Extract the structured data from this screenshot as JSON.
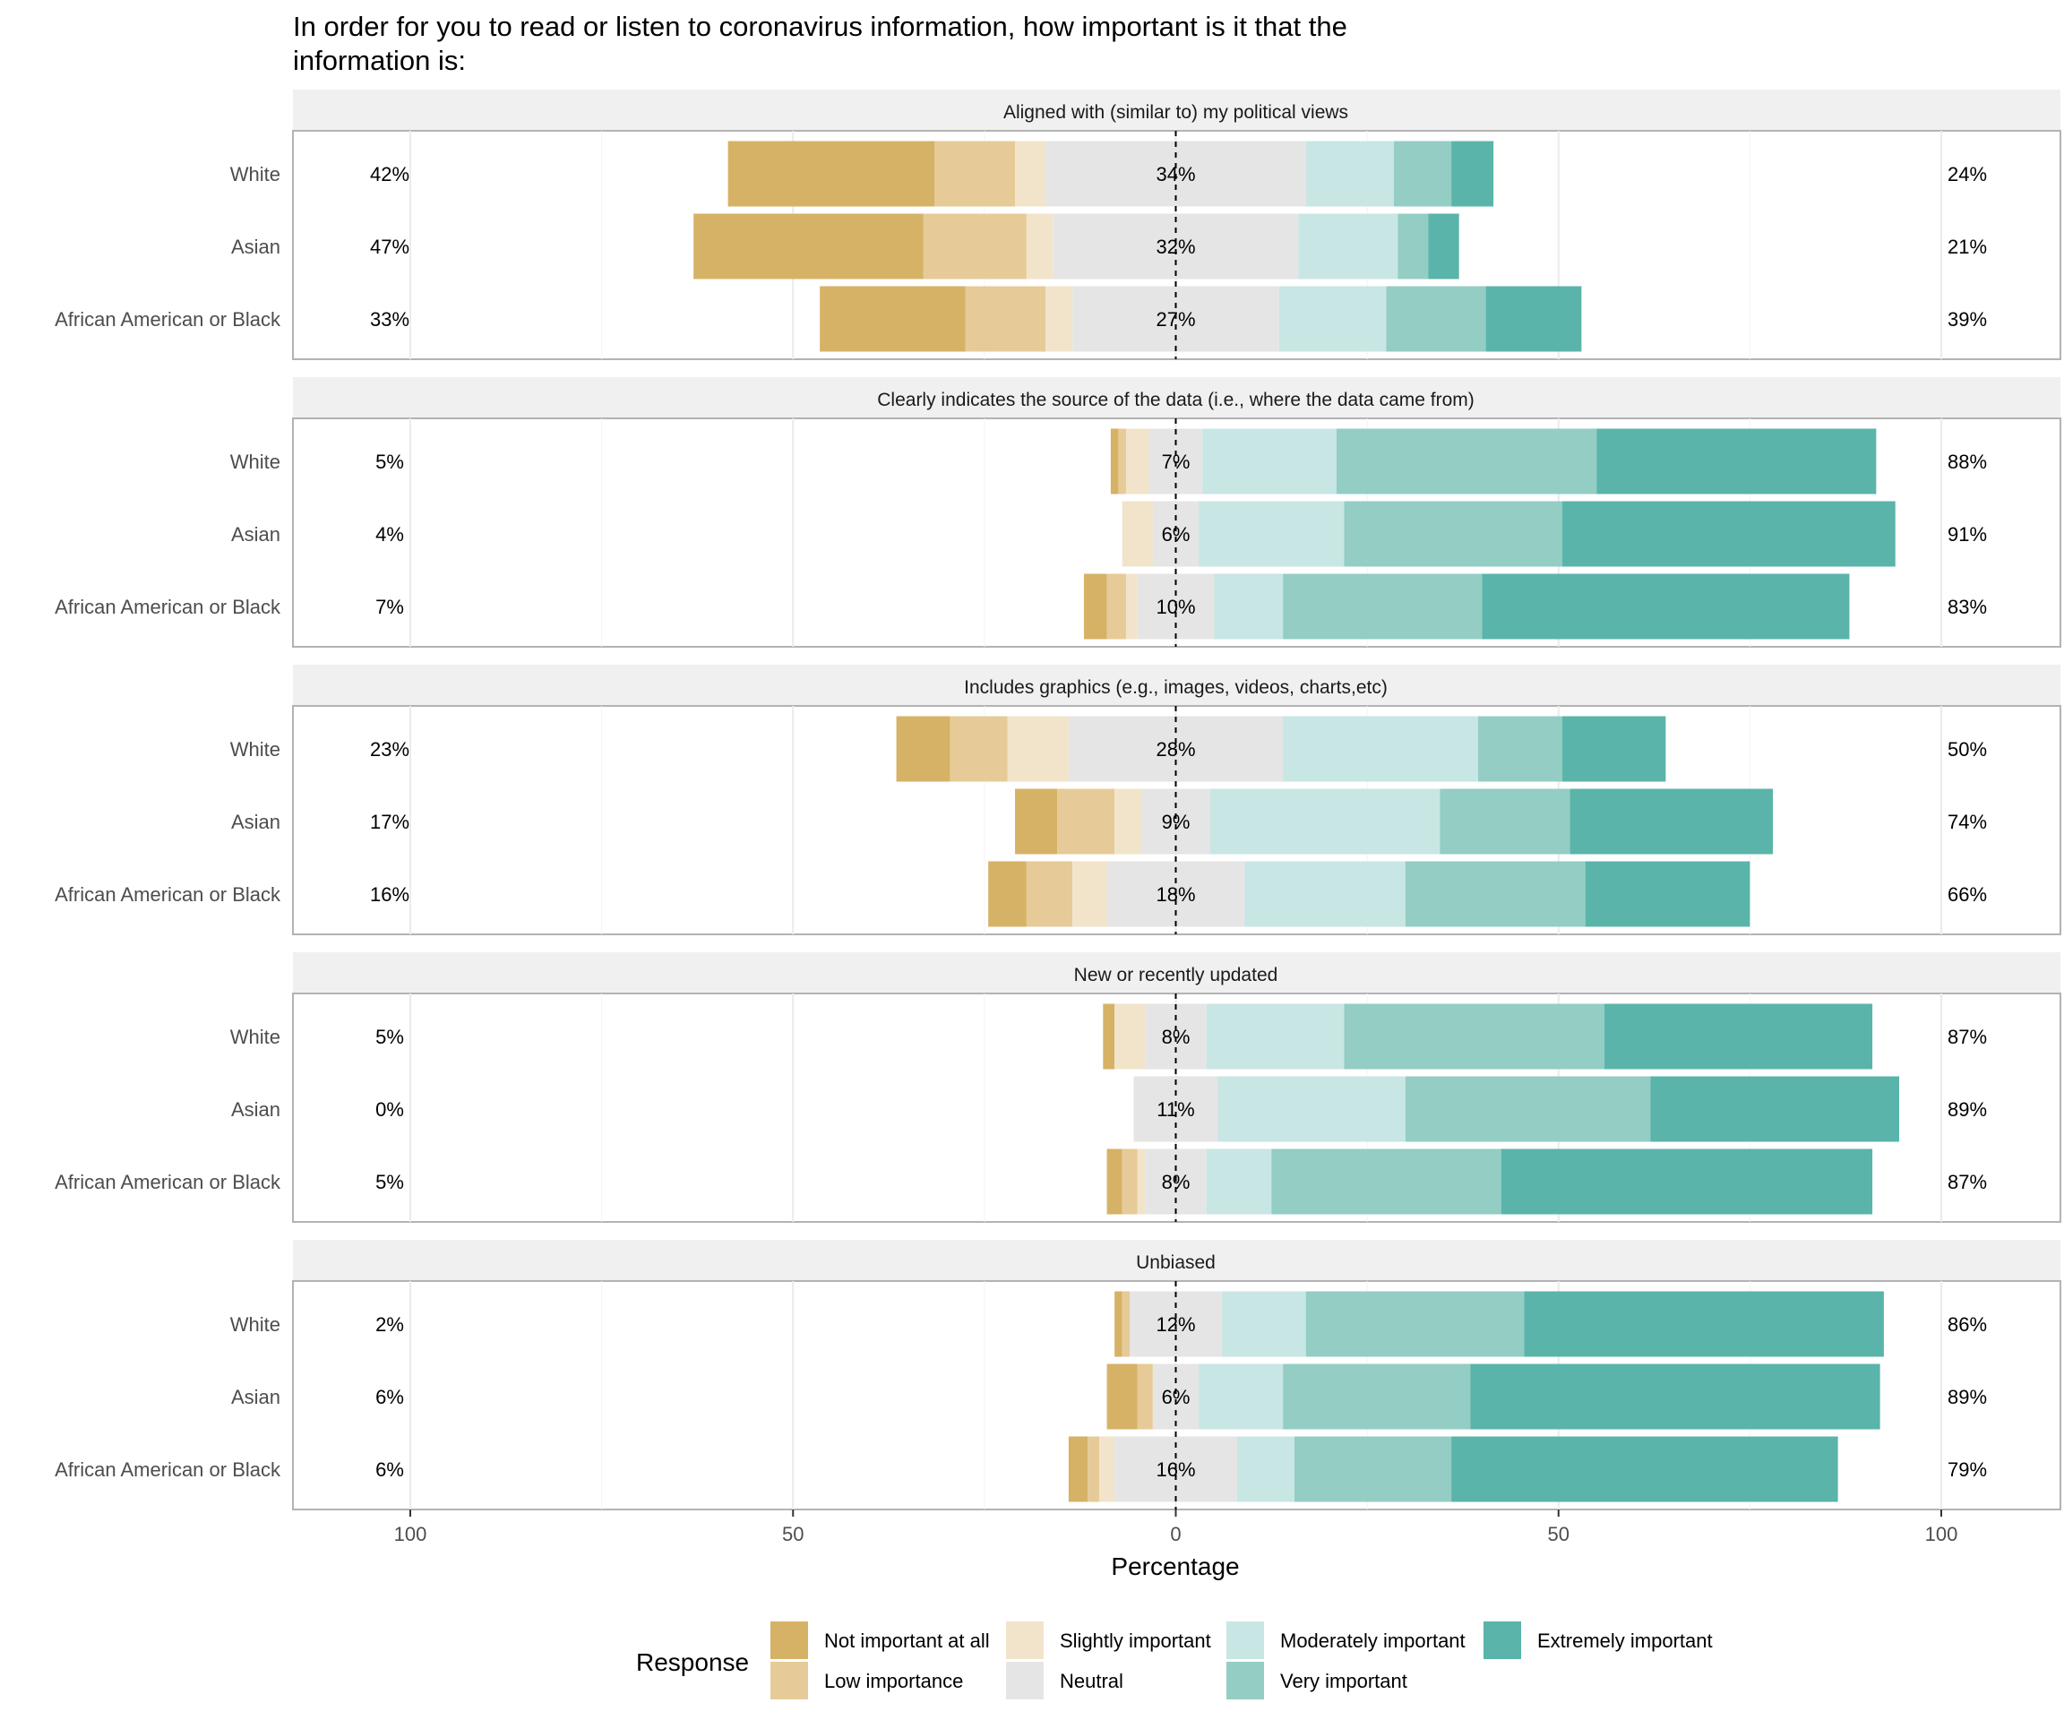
{
  "chart_data": {
    "type": "bar",
    "subtype": "diverging-stacked-likert",
    "title": "In order for you to read or listen to coronavirus information, how important is it that the information is:",
    "title_lines": [
      "In order for you to read or listen to coronavirus information, how important is it that the",
      "information is:"
    ],
    "xlabel": "Percentage",
    "xlim": [
      -100,
      100
    ],
    "xtick_values": [
      -100,
      -50,
      0,
      50,
      100
    ],
    "xtick_labels": [
      "100",
      "50",
      "0",
      "50",
      "100"
    ],
    "legend": {
      "title": "Response",
      "placement": "bottom",
      "items": [
        {
          "label": "Not important at all",
          "color": "#d6b266"
        },
        {
          "label": "Low importance",
          "color": "#e6cb98"
        },
        {
          "label": "Slightly important",
          "color": "#f2e4ca"
        },
        {
          "label": "Neutral",
          "color": "#e5e5e5"
        },
        {
          "label": "Moderately important",
          "color": "#c8e6e3"
        },
        {
          "label": "Very important",
          "color": "#93cdc4"
        },
        {
          "label": "Extremely important",
          "color": "#5ab4aa"
        }
      ]
    },
    "groups": [
      "White",
      "Asian",
      "African American or Black"
    ],
    "panels": [
      {
        "title": "Aligned with (similar to) my political views",
        "rows": [
          {
            "group": "White",
            "left_label": "42%",
            "center_label": "34%",
            "right_label": "24%",
            "values": [
              27,
              10.5,
              4,
              34,
              11.5,
              7.5,
              5.5
            ]
          },
          {
            "group": "Asian",
            "left_label": "47%",
            "center_label": "32%",
            "right_label": "21%",
            "values": [
              30,
              13.5,
              3.5,
              32,
              13,
              4,
              4
            ]
          },
          {
            "group": "African American or Black",
            "left_label": "33%",
            "center_label": "27%",
            "right_label": "39%",
            "values": [
              19,
              10.5,
              3.5,
              27,
              14,
              13,
              12.5
            ]
          }
        ]
      },
      {
        "title": "Clearly indicates the source of the data (i.e., where the data came from)",
        "rows": [
          {
            "group": "White",
            "left_label": "5%",
            "center_label": "7%",
            "right_label": "88%",
            "values": [
              1,
              1,
              3,
              7,
              17.5,
              34,
              36.5
            ]
          },
          {
            "group": "Asian",
            "left_label": "4%",
            "center_label": "6%",
            "right_label": "91%",
            "values": [
              0,
              0,
              4,
              6,
              19,
              28.5,
              43.5
            ]
          },
          {
            "group": "African American or Black",
            "left_label": "7%",
            "center_label": "10%",
            "right_label": "83%",
            "values": [
              3,
              2.5,
              1.5,
              10,
              9,
              26,
              48
            ]
          }
        ]
      },
      {
        "title": "Includes graphics (e.g., images, videos, charts,etc)",
        "rows": [
          {
            "group": "White",
            "left_label": "23%",
            "center_label": "28%",
            "right_label": "50%",
            "values": [
              7,
              7.5,
              8,
              28,
              25.5,
              11,
              13.5
            ]
          },
          {
            "group": "Asian",
            "left_label": "17%",
            "center_label": "9%",
            "right_label": "74%",
            "values": [
              5.5,
              7.5,
              3.5,
              9,
              30,
              17,
              26.5
            ]
          },
          {
            "group": "African American or Black",
            "left_label": "16%",
            "center_label": "18%",
            "right_label": "66%",
            "values": [
              5,
              6,
              4.5,
              18,
              21,
              23.5,
              21.5
            ]
          }
        ]
      },
      {
        "title": "New or recently updated",
        "rows": [
          {
            "group": "White",
            "left_label": "5%",
            "center_label": "8%",
            "right_label": "87%",
            "values": [
              1.5,
              0,
              4,
              8,
              18,
              34,
              35
            ]
          },
          {
            "group": "Asian",
            "left_label": "0%",
            "center_label": "11%",
            "right_label": "89%",
            "values": [
              0,
              0,
              0,
              11,
              24.5,
              32,
              32.5
            ]
          },
          {
            "group": "African American or Black",
            "left_label": "5%",
            "center_label": "8%",
            "right_label": "87%",
            "values": [
              2,
              2,
              1,
              8,
              8.5,
              30,
              48.5
            ]
          }
        ]
      },
      {
        "title": "Unbiased",
        "rows": [
          {
            "group": "White",
            "left_label": "2%",
            "center_label": "12%",
            "right_label": "86%",
            "values": [
              1,
              1,
              0,
              12,
              11,
              28.5,
              47
            ]
          },
          {
            "group": "Asian",
            "left_label": "6%",
            "center_label": "6%",
            "right_label": "89%",
            "values": [
              4,
              2,
              0,
              6,
              11,
              24.5,
              53.5
            ]
          },
          {
            "group": "African American or Black",
            "left_label": "6%",
            "center_label": "16%",
            "right_label": "79%",
            "values": [
              2.5,
              1.5,
              2,
              16,
              7.5,
              20.5,
              50.5
            ]
          }
        ]
      }
    ]
  }
}
